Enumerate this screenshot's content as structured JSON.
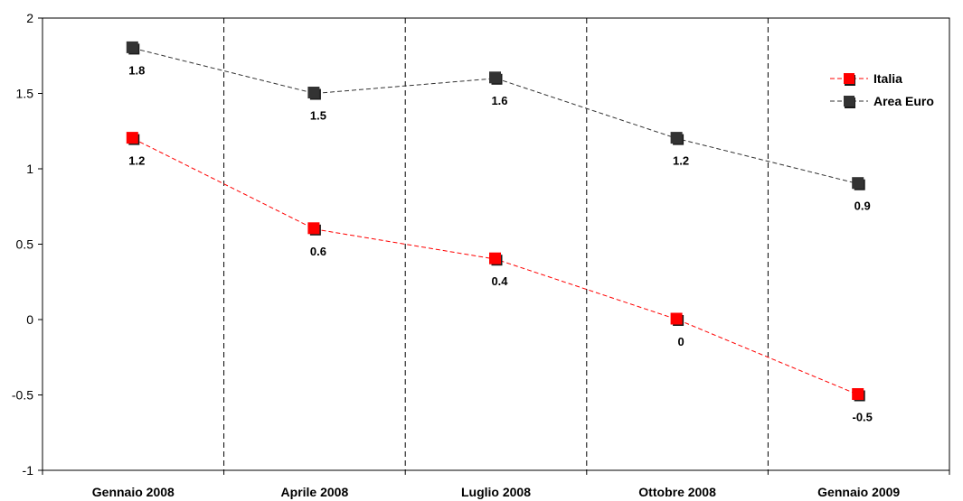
{
  "chart_data": {
    "type": "line",
    "categories": [
      "Gennaio 2008",
      "Aprile 2008",
      "Luglio 2008",
      "Ottobre 2008",
      "Gennaio 2009"
    ],
    "ylim": [
      -1,
      2
    ],
    "yticks": [
      "-1",
      "-0.5",
      "0",
      "0.5",
      "1",
      "1.5",
      "2"
    ],
    "grid": "vertical dashed separators between categories",
    "legend_position": "top-right",
    "series": [
      {
        "name": "Italia",
        "values": [
          1.2,
          0.6,
          0.4,
          0,
          -0.5
        ],
        "labels": [
          "1.2",
          "0.6",
          "0.4",
          "0",
          "-0.5"
        ],
        "color": "#ff0000",
        "marker": "square",
        "line_style": "dashed"
      },
      {
        "name": "Area Euro",
        "values": [
          1.8,
          1.5,
          1.6,
          1.2,
          0.9
        ],
        "labels": [
          "1.8",
          "1.5",
          "1.6",
          "1.2",
          "0.9"
        ],
        "color": "#333333",
        "marker": "square",
        "line_style": "dashed"
      }
    ]
  }
}
